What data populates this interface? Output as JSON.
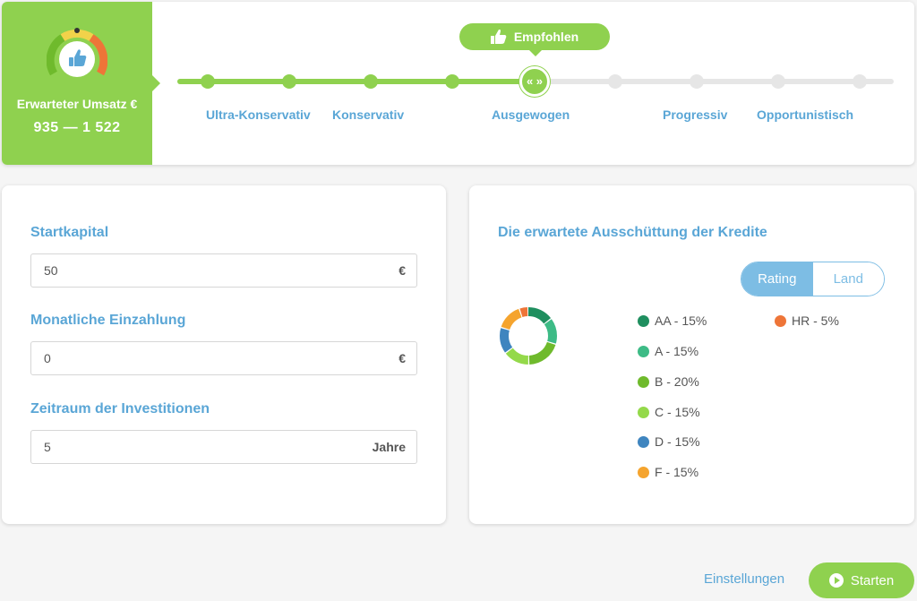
{
  "header": {
    "umsatz_label": "Erwarteter Umsatz €",
    "umsatz_value": "935 — 1 522",
    "recommended_badge": "Empfohlen",
    "slider_handle_glyph": "« »",
    "steps": [
      {
        "label": "Ultra-Konservativ"
      },
      {
        "label": "Konservativ"
      },
      {
        "label": "Ausgewogen"
      },
      {
        "label": "Progressiv"
      },
      {
        "label": "Opportunistisch"
      }
    ],
    "selected_step": "Ausgewogen"
  },
  "form": {
    "startkapital": {
      "label": "Startkapital",
      "value": "50",
      "unit": "€"
    },
    "einzahlung": {
      "label": "Monatliche Einzahlung",
      "value": "0",
      "unit": "€"
    },
    "zeitraum": {
      "label": "Zeitraum der Investitionen",
      "value": "5",
      "unit": "Jahre"
    }
  },
  "distribution": {
    "title": "Die erwartete Ausschüttung der Kredite",
    "toggle": {
      "active": "Rating",
      "inactive": "Land"
    },
    "legend": [
      {
        "label": "AA - 15%",
        "pct": 15,
        "color": "#1f8f5f"
      },
      {
        "label": "A - 15%",
        "pct": 15,
        "color": "#3dbb86"
      },
      {
        "label": "B - 20%",
        "pct": 20,
        "color": "#6fba2c"
      },
      {
        "label": "C - 15%",
        "pct": 15,
        "color": "#94d94a"
      },
      {
        "label": "D - 15%",
        "pct": 15,
        "color": "#3f85bf"
      },
      {
        "label": "F - 15%",
        "pct": 15,
        "color": "#f5a42e"
      },
      {
        "label": "HR - 5%",
        "pct": 5,
        "color": "#ee7538"
      }
    ]
  },
  "footer": {
    "settings_label": "Einstellungen",
    "start_label": "Starten"
  },
  "colors": {
    "accent_green": "#8fd14f",
    "accent_blue": "#5aa6d6"
  }
}
